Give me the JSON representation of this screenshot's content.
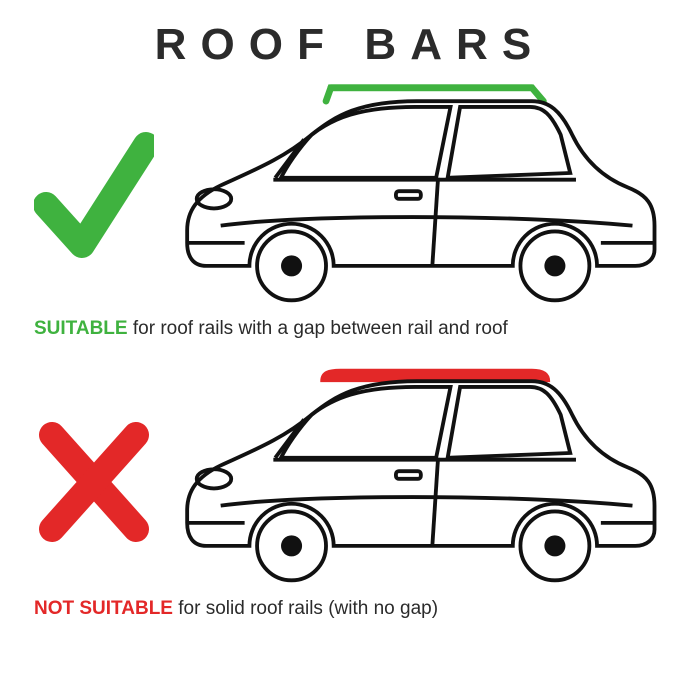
{
  "title": {
    "text": "ROOF BARS",
    "fontsize": 44,
    "color": "#2b2b2b",
    "letter_spacing_em": 0.32
  },
  "colors": {
    "suitable_mark": "#3fb23f",
    "suitable_text": "#3fb23f",
    "unsuitable_mark": "#e32828",
    "unsuitable_text": "#e32828",
    "body_text": "#2b2b2b",
    "car_stroke": "#111111",
    "car_fill": "#ffffff",
    "background": "#ffffff",
    "roof_rail_gap": "#3fb23f",
    "roof_rail_solid": "#e32828"
  },
  "suitable": {
    "lead": "SUITABLE",
    "rest": " for roof rails with a gap between rail and roof",
    "rail_type": "gap"
  },
  "unsuitable": {
    "lead": "NOT SUITABLE",
    "rest": " for solid roof rails (with no gap)",
    "rail_type": "solid"
  },
  "car_diagram": {
    "type": "line-drawing",
    "stroke_width": 4,
    "wheel_outer_r": 36,
    "wheel_inner_r": 11,
    "body_nodes": "side-profile-hatchback"
  }
}
